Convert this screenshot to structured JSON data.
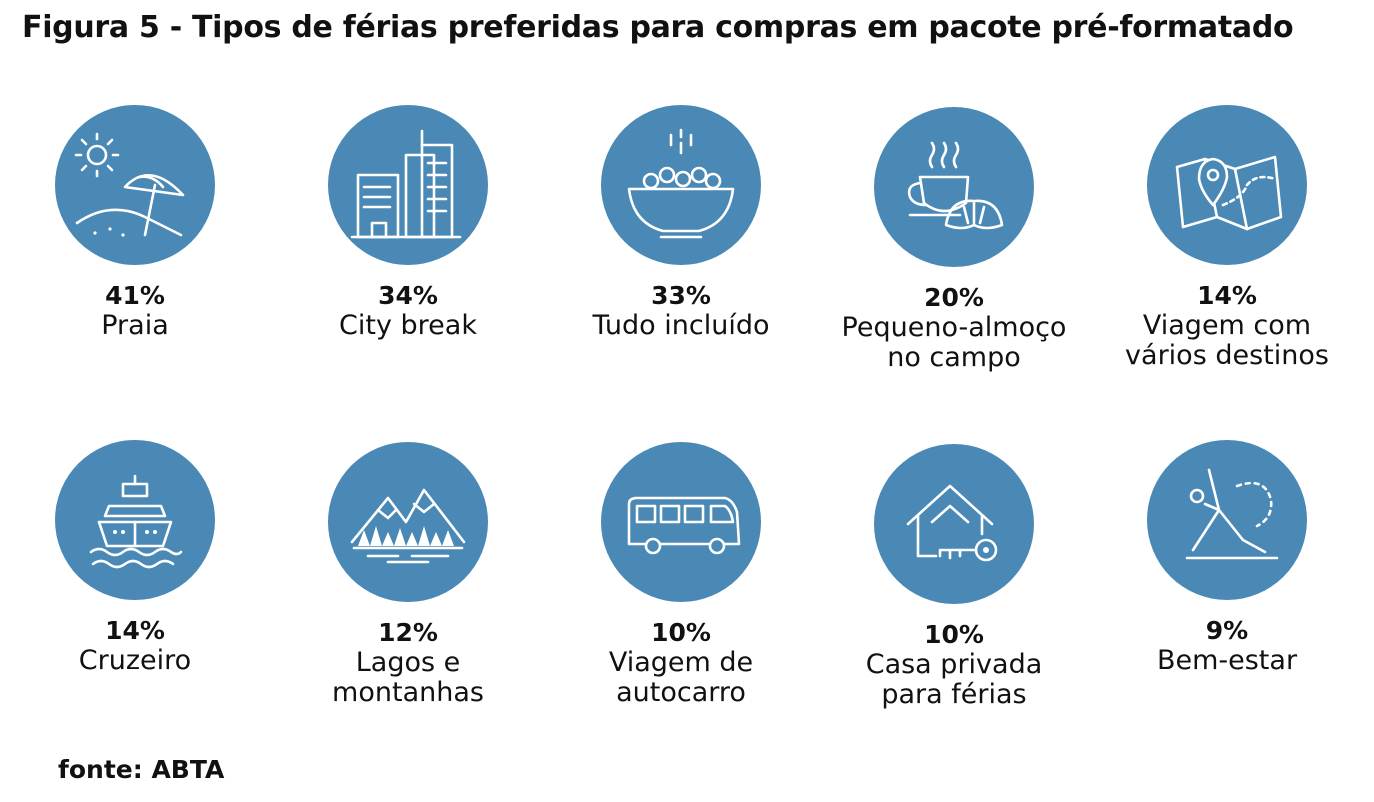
{
  "title": "Figura 5 - Tipos de férias preferidas para compras em pacote pré-formatado",
  "source": "fonte: ABTA",
  "colors": {
    "circle": "#4a88b5",
    "icon": "#ffffff"
  },
  "chart_data": {
    "type": "table",
    "unit": "%",
    "items": [
      {
        "value": 41,
        "value_label": "41%",
        "label_lines": [
          "Praia"
        ],
        "icon": "beach-umbrella-icon"
      },
      {
        "value": 34,
        "value_label": "34%",
        "label_lines": [
          "City break"
        ],
        "icon": "city-buildings-icon"
      },
      {
        "value": 33,
        "value_label": "33%",
        "label_lines": [
          "Tudo incluído"
        ],
        "icon": "food-bowl-icon"
      },
      {
        "value": 20,
        "value_label": "20%",
        "label_lines": [
          "Pequeno-almoço",
          "no campo"
        ],
        "icon": "coffee-croissant-icon"
      },
      {
        "value": 14,
        "value_label": "14%",
        "label_lines": [
          "Viagem com",
          "vários destinos"
        ],
        "icon": "map-pin-icon"
      },
      {
        "value": 14,
        "value_label": "14%",
        "label_lines": [
          "Cruzeiro"
        ],
        "icon": "cruise-ship-icon"
      },
      {
        "value": 12,
        "value_label": "12%",
        "label_lines": [
          "Lagos e",
          "montanhas"
        ],
        "icon": "mountains-lake-icon"
      },
      {
        "value": 10,
        "value_label": "10%",
        "label_lines": [
          "Viagem de",
          "autocarro"
        ],
        "icon": "bus-icon"
      },
      {
        "value": 10,
        "value_label": "10%",
        "label_lines": [
          "Casa privada",
          "para férias"
        ],
        "icon": "house-key-icon"
      },
      {
        "value": 9,
        "value_label": "9%",
        "label_lines": [
          "Bem-estar"
        ],
        "icon": "yoga-pose-icon"
      }
    ]
  }
}
